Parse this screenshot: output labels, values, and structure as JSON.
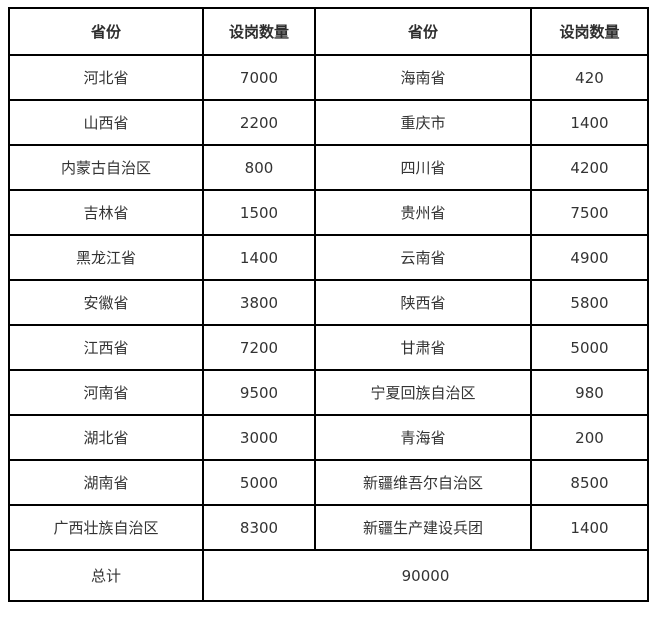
{
  "chart_data": {
    "type": "table",
    "title": "",
    "columns": [
      "省份",
      "设岗数量",
      "省份",
      "设岗数量"
    ],
    "rows": [
      [
        "河北省",
        "7000",
        "海南省",
        "420"
      ],
      [
        "山西省",
        "2200",
        "重庆市",
        "1400"
      ],
      [
        "内蒙古自治区",
        "800",
        "四川省",
        "4200"
      ],
      [
        "吉林省",
        "1500",
        "贵州省",
        "7500"
      ],
      [
        "黑龙江省",
        "1400",
        "云南省",
        "4900"
      ],
      [
        "安徽省",
        "3800",
        "陕西省",
        "5800"
      ],
      [
        "江西省",
        "7200",
        "甘肃省",
        "5000"
      ],
      [
        "河南省",
        "9500",
        "宁夏回族自治区",
        "980"
      ],
      [
        "湖北省",
        "3000",
        "青海省",
        "200"
      ],
      [
        "湖南省",
        "5000",
        "新疆维吾尔自治区",
        "8500"
      ],
      [
        "广西壮族自治区",
        "8300",
        "新疆生产建设兵团",
        "1400"
      ]
    ],
    "total_label": "总计",
    "total_value": "90000"
  },
  "colors": {
    "border": "#000000",
    "text": "#333333",
    "background": "#ffffff"
  }
}
